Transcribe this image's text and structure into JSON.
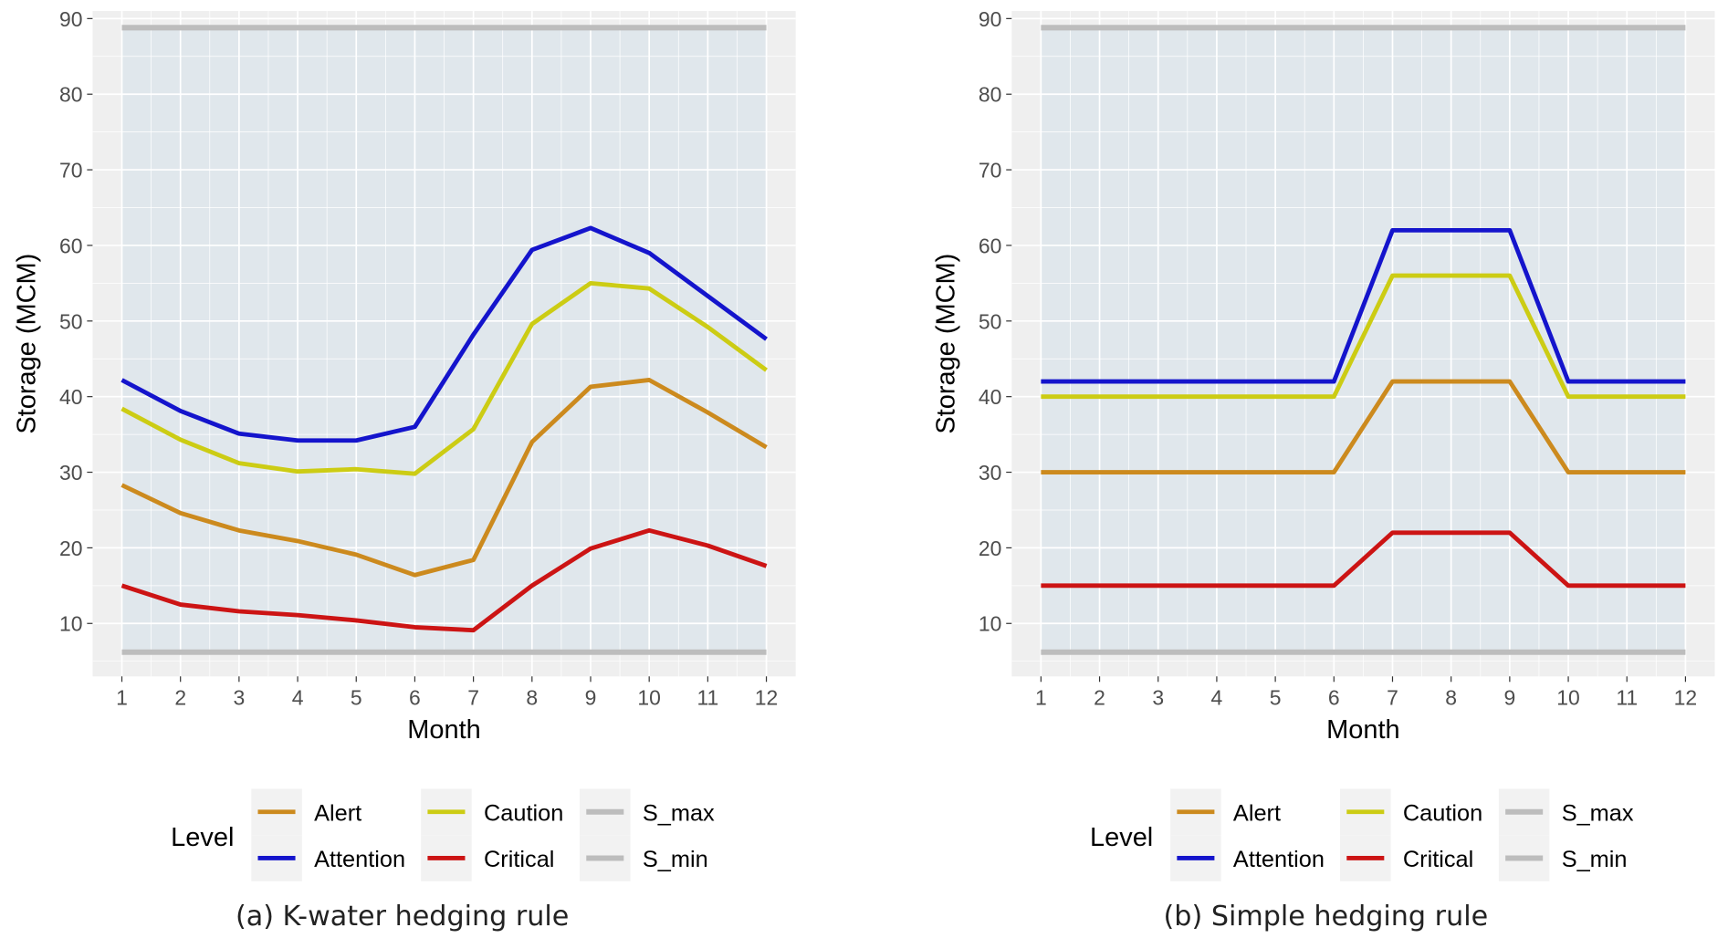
{
  "colors": {
    "Alert": "#CC8A1E",
    "Attention": "#1414CC",
    "Caution": "#CCCC14",
    "Critical": "#CC1414",
    "S_max": "#BDBDBD",
    "S_min": "#BDBDBD",
    "panel_background": "#E0E7EC",
    "outer_background": "#EFEFEF",
    "grid": "#FFFFFF"
  },
  "chart_data": [
    {
      "type": "line",
      "panel_caption": "(a) K-water hedging rule",
      "xlabel": "Month",
      "ylabel": "Storage (MCM)",
      "x": [
        1,
        2,
        3,
        4,
        5,
        6,
        7,
        8,
        9,
        10,
        11,
        12
      ],
      "xlim": [
        0.5,
        12.5
      ],
      "ylim": [
        3,
        91
      ],
      "yticks": [
        10,
        20,
        30,
        40,
        50,
        60,
        70,
        80,
        90
      ],
      "grid": true,
      "legend": {
        "title": "Level",
        "position": "bottom"
      },
      "series": [
        {
          "name": "Alert",
          "values": [
            28.3,
            24.6,
            22.3,
            20.9,
            19.1,
            16.4,
            18.4,
            34.0,
            41.3,
            42.2,
            37.9,
            33.3
          ]
        },
        {
          "name": "Attention",
          "values": [
            42.2,
            38.1,
            35.1,
            34.2,
            34.2,
            36.0,
            48.2,
            59.4,
            62.3,
            59.0,
            53.3,
            47.6
          ]
        },
        {
          "name": "Caution",
          "values": [
            38.4,
            34.3,
            31.2,
            30.1,
            30.4,
            29.8,
            35.7,
            49.6,
            55.0,
            54.3,
            49.2,
            43.5
          ]
        },
        {
          "name": "Critical",
          "values": [
            15.0,
            12.5,
            11.6,
            11.1,
            10.4,
            9.5,
            9.1,
            15.0,
            19.9,
            22.3,
            20.3,
            17.6
          ]
        },
        {
          "name": "S_max",
          "values": [
            88.8,
            88.8,
            88.8,
            88.8,
            88.8,
            88.8,
            88.8,
            88.8,
            88.8,
            88.8,
            88.8,
            88.8
          ]
        },
        {
          "name": "S_min",
          "values": [
            6.2,
            6.2,
            6.2,
            6.2,
            6.2,
            6.2,
            6.2,
            6.2,
            6.2,
            6.2,
            6.2,
            6.2
          ]
        }
      ]
    },
    {
      "type": "line",
      "panel_caption": "(b) Simple hedging rule",
      "xlabel": "Month",
      "ylabel": "Storage (MCM)",
      "x": [
        1,
        2,
        3,
        4,
        5,
        6,
        7,
        8,
        9,
        10,
        11,
        12
      ],
      "xlim": [
        0.5,
        12.5
      ],
      "ylim": [
        3,
        91
      ],
      "yticks": [
        10,
        20,
        30,
        40,
        50,
        60,
        70,
        80,
        90
      ],
      "grid": true,
      "legend": {
        "title": "Level",
        "position": "bottom"
      },
      "series": [
        {
          "name": "Alert",
          "values": [
            30,
            30,
            30,
            30,
            30,
            30,
            42,
            42,
            42,
            30,
            30,
            30
          ]
        },
        {
          "name": "Attention",
          "values": [
            42,
            42,
            42,
            42,
            42,
            42,
            62,
            62,
            62,
            42,
            42,
            42
          ]
        },
        {
          "name": "Caution",
          "values": [
            40,
            40,
            40,
            40,
            40,
            40,
            56,
            56,
            56,
            40,
            40,
            40
          ]
        },
        {
          "name": "Critical",
          "values": [
            15,
            15,
            15,
            15,
            15,
            15,
            22,
            22,
            22,
            15,
            15,
            15
          ]
        },
        {
          "name": "S_max",
          "values": [
            88.8,
            88.8,
            88.8,
            88.8,
            88.8,
            88.8,
            88.8,
            88.8,
            88.8,
            88.8,
            88.8,
            88.8
          ]
        },
        {
          "name": "S_min",
          "values": [
            6.2,
            6.2,
            6.2,
            6.2,
            6.2,
            6.2,
            6.2,
            6.2,
            6.2,
            6.2,
            6.2,
            6.2
          ]
        }
      ]
    }
  ]
}
